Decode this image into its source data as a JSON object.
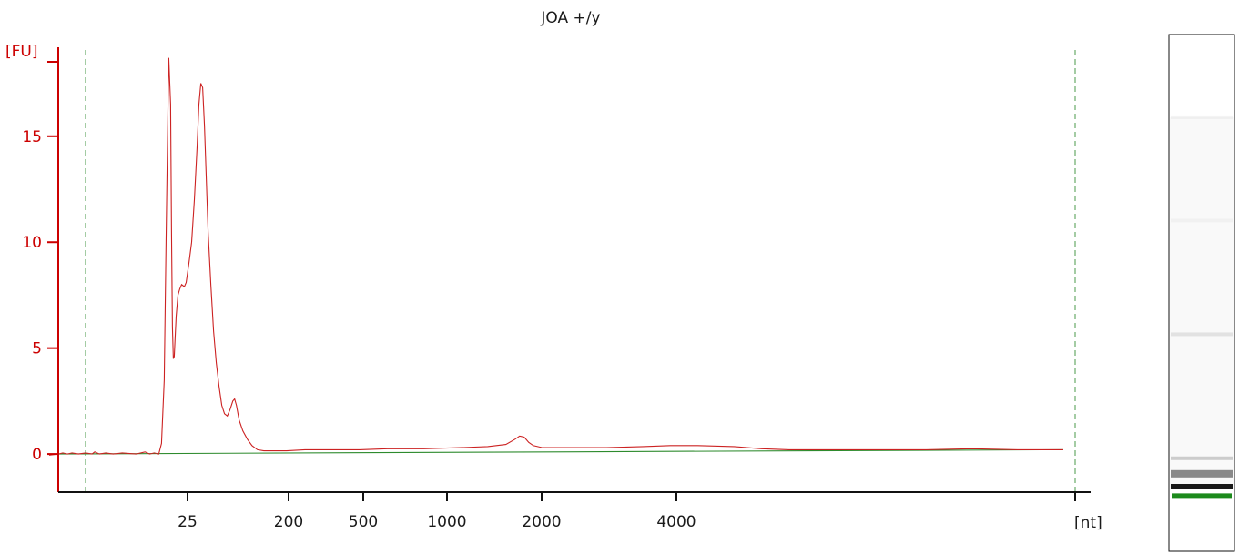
{
  "chart_data": {
    "type": "line",
    "title": "JOA +/y",
    "ylabel": "[FU]",
    "xlabel": "[nt]",
    "ylim": [
      -1.8,
      19.2
    ],
    "yticks": [
      0,
      5,
      10,
      15
    ],
    "xticks": [
      "25",
      "200",
      "500",
      "1000",
      "2000",
      "4000"
    ],
    "markers": [
      "start",
      "end"
    ],
    "series": [
      {
        "color": "#cc2222",
        "points": [
          [
            -10,
            -0.05
          ],
          [
            0,
            0.0
          ],
          [
            5,
            0.05
          ],
          [
            10,
            0.0
          ],
          [
            15,
            0.05
          ],
          [
            22,
            0.0
          ],
          [
            30,
            0.05
          ],
          [
            37,
            0.0
          ],
          [
            40,
            0.1
          ],
          [
            45,
            0.0
          ],
          [
            52,
            0.05
          ],
          [
            60,
            0.0
          ],
          [
            70,
            0.05
          ],
          [
            85,
            0.0
          ],
          [
            95,
            0.1
          ],
          [
            100,
            0.0
          ],
          [
            105,
            0.05
          ],
          [
            110,
            0.0
          ],
          [
            113,
            0.5
          ],
          [
            116,
            3.5
          ],
          [
            118,
            10.0
          ],
          [
            120,
            16.0
          ],
          [
            121,
            18.7
          ],
          [
            123,
            16.5
          ],
          [
            124,
            10.5
          ],
          [
            125,
            6.0
          ],
          [
            126,
            4.5
          ],
          [
            127,
            4.6
          ],
          [
            129,
            6.5
          ],
          [
            131,
            7.5
          ],
          [
            133,
            7.8
          ],
          [
            135,
            8.0
          ],
          [
            138,
            7.9
          ],
          [
            140,
            8.1
          ],
          [
            143,
            9.0
          ],
          [
            146,
            10.0
          ],
          [
            149,
            12.0
          ],
          [
            152,
            14.5
          ],
          [
            154,
            16.5
          ],
          [
            156,
            17.5
          ],
          [
            158,
            17.3
          ],
          [
            160,
            15.5
          ],
          [
            162,
            13.0
          ],
          [
            164,
            10.5
          ],
          [
            167,
            8.0
          ],
          [
            170,
            5.8
          ],
          [
            173,
            4.3
          ],
          [
            176,
            3.2
          ],
          [
            179,
            2.3
          ],
          [
            182,
            1.9
          ],
          [
            185,
            1.8
          ],
          [
            188,
            2.1
          ],
          [
            191,
            2.5
          ],
          [
            193,
            2.6
          ],
          [
            195,
            2.3
          ],
          [
            198,
            1.6
          ],
          [
            202,
            1.1
          ],
          [
            207,
            0.7
          ],
          [
            212,
            0.4
          ],
          [
            218,
            0.2
          ],
          [
            225,
            0.15
          ],
          [
            235,
            0.15
          ],
          [
            250,
            0.15
          ],
          [
            270,
            0.2
          ],
          [
            300,
            0.2
          ],
          [
            330,
            0.2
          ],
          [
            360,
            0.25
          ],
          [
            400,
            0.25
          ],
          [
            440,
            0.3
          ],
          [
            470,
            0.35
          ],
          [
            490,
            0.45
          ],
          [
            500,
            0.7
          ],
          [
            505,
            0.85
          ],
          [
            510,
            0.8
          ],
          [
            515,
            0.55
          ],
          [
            520,
            0.4
          ],
          [
            530,
            0.3
          ],
          [
            560,
            0.3
          ],
          [
            600,
            0.3
          ],
          [
            640,
            0.35
          ],
          [
            670,
            0.4
          ],
          [
            700,
            0.4
          ],
          [
            740,
            0.35
          ],
          [
            770,
            0.25
          ],
          [
            800,
            0.2
          ],
          [
            850,
            0.2
          ],
          [
            900,
            0.2
          ],
          [
            950,
            0.2
          ],
          [
            1000,
            0.25
          ],
          [
            1050,
            0.2
          ],
          [
            1100,
            0.2
          ]
        ]
      },
      {
        "color": "#2e8b2e",
        "points": [
          [
            -10,
            0.0
          ],
          [
            1100,
            0.2
          ]
        ]
      }
    ]
  },
  "gel_lane": {
    "bands": [
      {
        "position": 0.16,
        "intensity": 0.04
      },
      {
        "position": 0.36,
        "intensity": 0.03
      },
      {
        "position": 0.58,
        "intensity": 0.09
      },
      {
        "position": 0.82,
        "intensity": 0.18
      },
      {
        "position": 0.85,
        "intensity": 0.45
      },
      {
        "position": 0.875,
        "intensity": 0.9
      }
    ],
    "marker_color": "#1c8a1c"
  }
}
